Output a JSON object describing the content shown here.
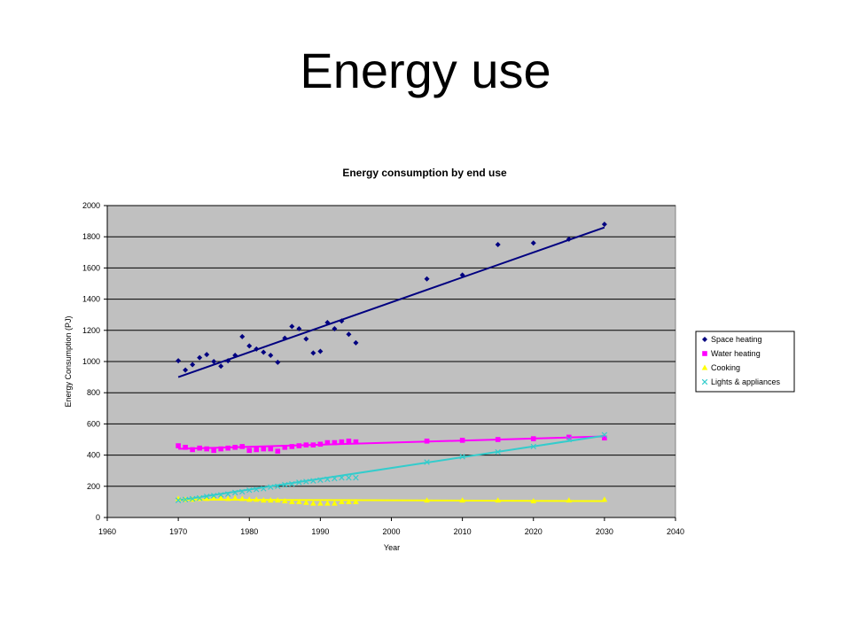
{
  "slide": {
    "title": "Energy use"
  },
  "chart_data": {
    "type": "scatter",
    "title": "Energy consumption by end use",
    "xlabel": "Year",
    "ylabel": "Energy Consumption (PJ)",
    "xlim": [
      1960,
      2040
    ],
    "ylim": [
      0,
      2000
    ],
    "x_ticks": [
      1960,
      1970,
      1980,
      1990,
      2000,
      2010,
      2020,
      2030,
      2040
    ],
    "y_ticks": [
      0,
      200,
      400,
      600,
      800,
      1000,
      1200,
      1400,
      1600,
      1800,
      2000
    ],
    "grid": "horizontal",
    "legend_position": "right",
    "plot_background": "#c0c0c0",
    "series": [
      {
        "name": "Space heating",
        "marker": "diamond",
        "color": "#000080",
        "points": [
          [
            1970,
            1005
          ],
          [
            1971,
            945
          ],
          [
            1972,
            980
          ],
          [
            1973,
            1025
          ],
          [
            1974,
            1045
          ],
          [
            1975,
            1000
          ],
          [
            1976,
            970
          ],
          [
            1977,
            1005
          ],
          [
            1978,
            1040
          ],
          [
            1979,
            1160
          ],
          [
            1980,
            1100
          ],
          [
            1981,
            1080
          ],
          [
            1982,
            1060
          ],
          [
            1983,
            1040
          ],
          [
            1984,
            995
          ],
          [
            1985,
            1150
          ],
          [
            1986,
            1225
          ],
          [
            1987,
            1210
          ],
          [
            1988,
            1145
          ],
          [
            1989,
            1055
          ],
          [
            1990,
            1065
          ],
          [
            1991,
            1250
          ],
          [
            1992,
            1210
          ],
          [
            1993,
            1260
          ],
          [
            1994,
            1175
          ],
          [
            1995,
            1120
          ],
          [
            2005,
            1530
          ],
          [
            2010,
            1555
          ],
          [
            2015,
            1750
          ],
          [
            2020,
            1760
          ],
          [
            2025,
            1785
          ],
          [
            2030,
            1880
          ]
        ],
        "trend": [
          [
            1970,
            900
          ],
          [
            2030,
            1860
          ]
        ]
      },
      {
        "name": "Water heating",
        "marker": "square",
        "color": "#ff00ff",
        "points": [
          [
            1970,
            460
          ],
          [
            1971,
            450
          ],
          [
            1972,
            435
          ],
          [
            1973,
            445
          ],
          [
            1974,
            440
          ],
          [
            1975,
            430
          ],
          [
            1976,
            440
          ],
          [
            1977,
            445
          ],
          [
            1978,
            450
          ],
          [
            1979,
            455
          ],
          [
            1980,
            430
          ],
          [
            1981,
            435
          ],
          [
            1982,
            440
          ],
          [
            1983,
            440
          ],
          [
            1984,
            425
          ],
          [
            1985,
            450
          ],
          [
            1986,
            455
          ],
          [
            1987,
            460
          ],
          [
            1988,
            465
          ],
          [
            1989,
            465
          ],
          [
            1990,
            470
          ],
          [
            1991,
            480
          ],
          [
            1992,
            480
          ],
          [
            1993,
            485
          ],
          [
            1994,
            490
          ],
          [
            1995,
            485
          ],
          [
            2005,
            490
          ],
          [
            2010,
            495
          ],
          [
            2015,
            500
          ],
          [
            2020,
            505
          ],
          [
            2025,
            515
          ],
          [
            2030,
            510
          ]
        ],
        "trend": [
          [
            1970,
            440
          ],
          [
            2030,
            520
          ]
        ]
      },
      {
        "name": "Cooking",
        "marker": "triangle",
        "color": "#ffff00",
        "points": [
          [
            1970,
            120
          ],
          [
            1971,
            115
          ],
          [
            1972,
            115
          ],
          [
            1973,
            120
          ],
          [
            1974,
            120
          ],
          [
            1975,
            125
          ],
          [
            1976,
            125
          ],
          [
            1977,
            120
          ],
          [
            1978,
            125
          ],
          [
            1979,
            120
          ],
          [
            1980,
            115
          ],
          [
            1981,
            115
          ],
          [
            1982,
            110
          ],
          [
            1983,
            110
          ],
          [
            1984,
            110
          ],
          [
            1985,
            105
          ],
          [
            1986,
            100
          ],
          [
            1987,
            100
          ],
          [
            1988,
            95
          ],
          [
            1989,
            90
          ],
          [
            1990,
            90
          ],
          [
            1991,
            90
          ],
          [
            1992,
            90
          ],
          [
            1993,
            100
          ],
          [
            1994,
            100
          ],
          [
            1995,
            100
          ],
          [
            2005,
            110
          ],
          [
            2010,
            110
          ],
          [
            2015,
            110
          ],
          [
            2020,
            105
          ],
          [
            2025,
            110
          ],
          [
            2030,
            115
          ]
        ],
        "trend": [
          [
            1970,
            115
          ],
          [
            2030,
            105
          ]
        ]
      },
      {
        "name": "Lights & appliances",
        "marker": "x",
        "color": "#33cccc",
        "points": [
          [
            1970,
            110
          ],
          [
            1971,
            115
          ],
          [
            1972,
            120
          ],
          [
            1973,
            125
          ],
          [
            1974,
            135
          ],
          [
            1975,
            140
          ],
          [
            1976,
            145
          ],
          [
            1977,
            150
          ],
          [
            1978,
            160
          ],
          [
            1979,
            165
          ],
          [
            1980,
            175
          ],
          [
            1981,
            180
          ],
          [
            1982,
            185
          ],
          [
            1983,
            195
          ],
          [
            1984,
            200
          ],
          [
            1985,
            210
          ],
          [
            1986,
            215
          ],
          [
            1987,
            225
          ],
          [
            1988,
            230
          ],
          [
            1989,
            235
          ],
          [
            1990,
            240
          ],
          [
            1991,
            245
          ],
          [
            1992,
            250
          ],
          [
            1993,
            255
          ],
          [
            1994,
            255
          ],
          [
            1995,
            255
          ],
          [
            2005,
            355
          ],
          [
            2010,
            390
          ],
          [
            2015,
            420
          ],
          [
            2020,
            455
          ],
          [
            2025,
            500
          ],
          [
            2030,
            530
          ]
        ],
        "trend": [
          [
            1970,
            110
          ],
          [
            2030,
            525
          ]
        ]
      }
    ]
  }
}
